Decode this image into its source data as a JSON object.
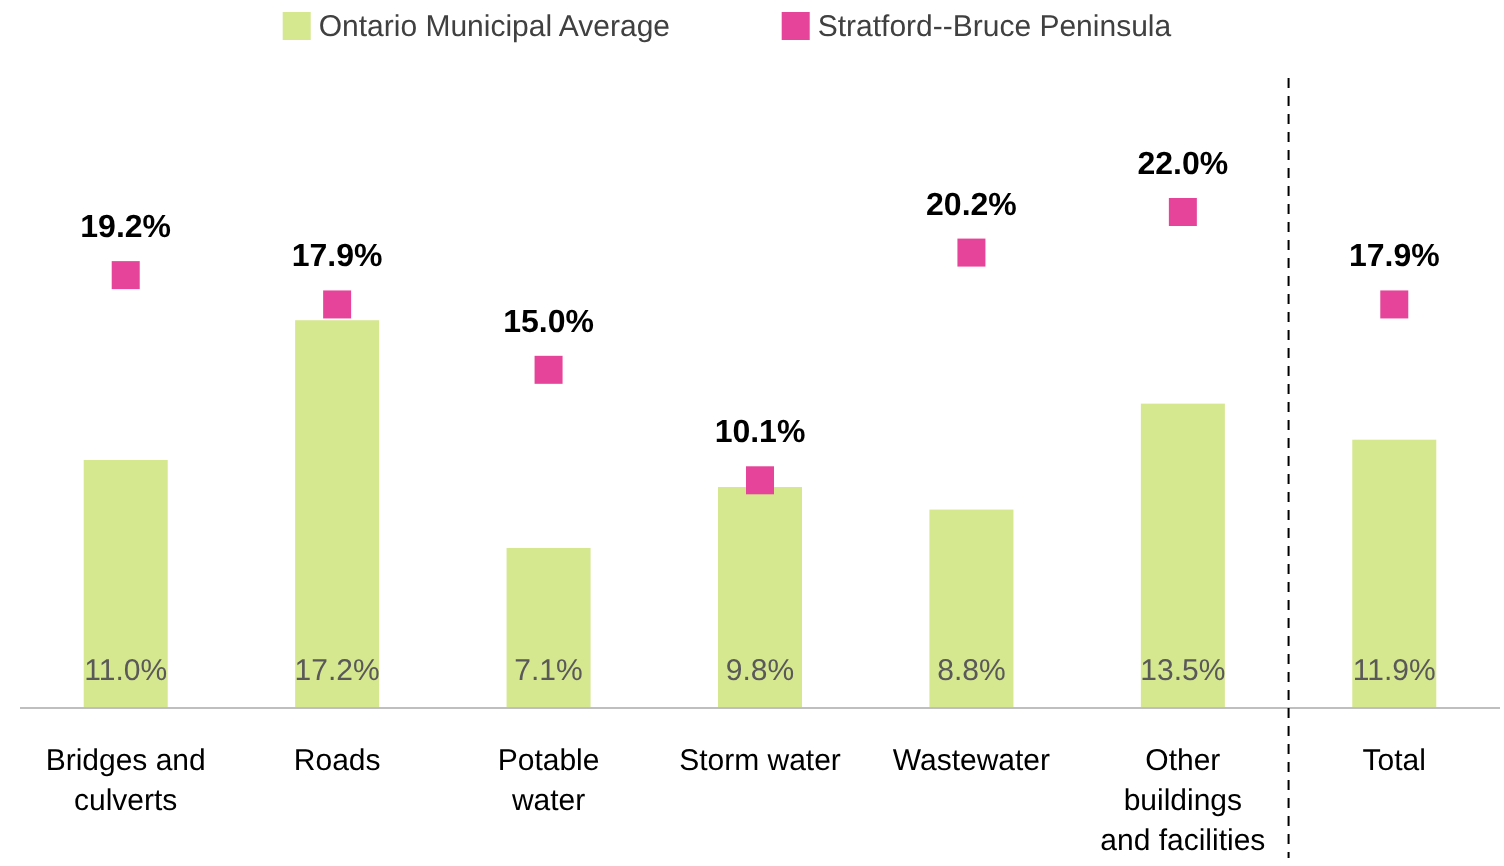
{
  "chart_data": {
    "type": "bar",
    "categories": [
      "Bridges and\nculverts",
      "Roads",
      "Potable\nwater",
      "Storm water",
      "Wastewater",
      "Other\nbuildings\nand facilities",
      "Total"
    ],
    "series": [
      {
        "name": "Ontario Municipal Average",
        "color": "#d5e78f",
        "values": [
          11.0,
          17.2,
          7.1,
          9.8,
          8.8,
          13.5,
          11.9
        ],
        "value_labels": [
          "11.0%",
          "17.2%",
          "7.1%",
          "9.8%",
          "8.8%",
          "13.5%",
          "11.9%"
        ]
      },
      {
        "name": "Stratford--Bruce Peninsula",
        "type": "scatter",
        "color": "#e6449a",
        "marker": "square",
        "values": [
          19.2,
          17.9,
          15.0,
          10.1,
          20.2,
          22.0,
          17.9
        ],
        "value_labels": [
          "19.2%",
          "17.9%",
          "15.0%",
          "10.1%",
          "20.2%",
          "22.0%",
          "17.9%"
        ]
      }
    ],
    "tick_labels": "x",
    "legend": "top"
  }
}
